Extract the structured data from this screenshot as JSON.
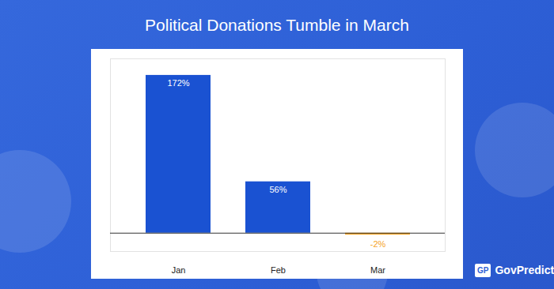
{
  "chart_data": {
    "type": "bar",
    "title": "Political Donations Tumble in March",
    "categories": [
      "Jan",
      "Feb",
      "Mar"
    ],
    "values": [
      172,
      56,
      -2
    ],
    "value_labels": [
      "172%",
      "56%",
      "-2%"
    ],
    "colors": [
      "#1a52d2",
      "#1a52d2",
      "#f5a31e"
    ],
    "data_labels": true,
    "ylim": [
      -20,
      190
    ],
    "yticks": [
      0
    ],
    "tick_labels": "x",
    "grid": false
  },
  "logo": {
    "badge": "GP",
    "text": "GovPredict"
  }
}
